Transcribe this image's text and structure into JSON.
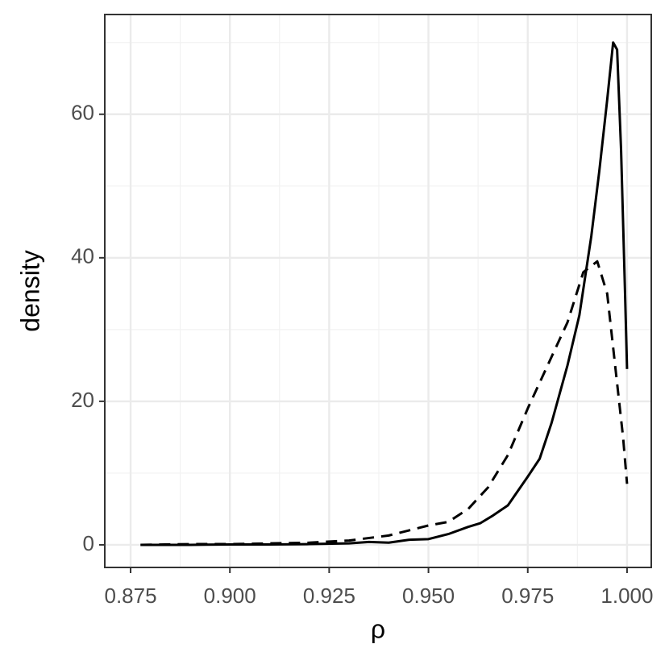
{
  "chart_data": {
    "type": "line",
    "x_label": "ρ",
    "y_label": "density",
    "xlim": [
      0.8685,
      1.0061
    ],
    "ylim": [
      -3.15,
      73.9
    ],
    "xticks": [
      0.875,
      {
        "value": 0.9,
        "label": "0.900"
      },
      0.925,
      {
        "value": 0.95,
        "label": "0.950"
      },
      0.975,
      {
        "value": 1,
        "label": "1.000"
      }
    ],
    "yticks": [
      0,
      20,
      40,
      60
    ],
    "grid": true,
    "minor_grid": true,
    "series": [
      {
        "color": "#000000",
        "dash": "solid",
        "x": [
          0.8775,
          0.89,
          0.9,
          0.91,
          0.92,
          0.93,
          0.935,
          0.94,
          0.945,
          0.95,
          0.955,
          0.96,
          0.963,
          0.966,
          0.97,
          0.975,
          0.978,
          0.981,
          0.985,
          0.988,
          0.991,
          0.993,
          0.995,
          0.9965,
          0.9975,
          0.9985,
          0.9995,
          1.0
        ],
        "values": [
          0,
          0,
          0.05,
          0.05,
          0.1,
          0.2,
          0.4,
          0.3,
          0.7,
          0.8,
          1.5,
          2.5,
          3,
          4,
          5.5,
          9.5,
          12,
          17,
          25,
          32,
          43,
          52,
          62,
          70,
          69,
          55,
          35,
          24.5
        ]
      },
      {
        "color": "#000000",
        "dash": "dashed",
        "x": [
          0.8775,
          0.89,
          0.9,
          0.91,
          0.92,
          0.93,
          0.94,
          0.945,
          0.95,
          0.955,
          0.96,
          0.965,
          0.97,
          0.975,
          0.98,
          0.985,
          0.989,
          0.9925,
          0.995,
          0.997,
          0.999,
          1.0
        ],
        "values": [
          0,
          0.1,
          0.1,
          0.2,
          0.3,
          0.6,
          1.3,
          2,
          2.7,
          3.2,
          5,
          8,
          12.5,
          19,
          25,
          31,
          38,
          39.5,
          35,
          25,
          15,
          8.5
        ]
      }
    ]
  }
}
